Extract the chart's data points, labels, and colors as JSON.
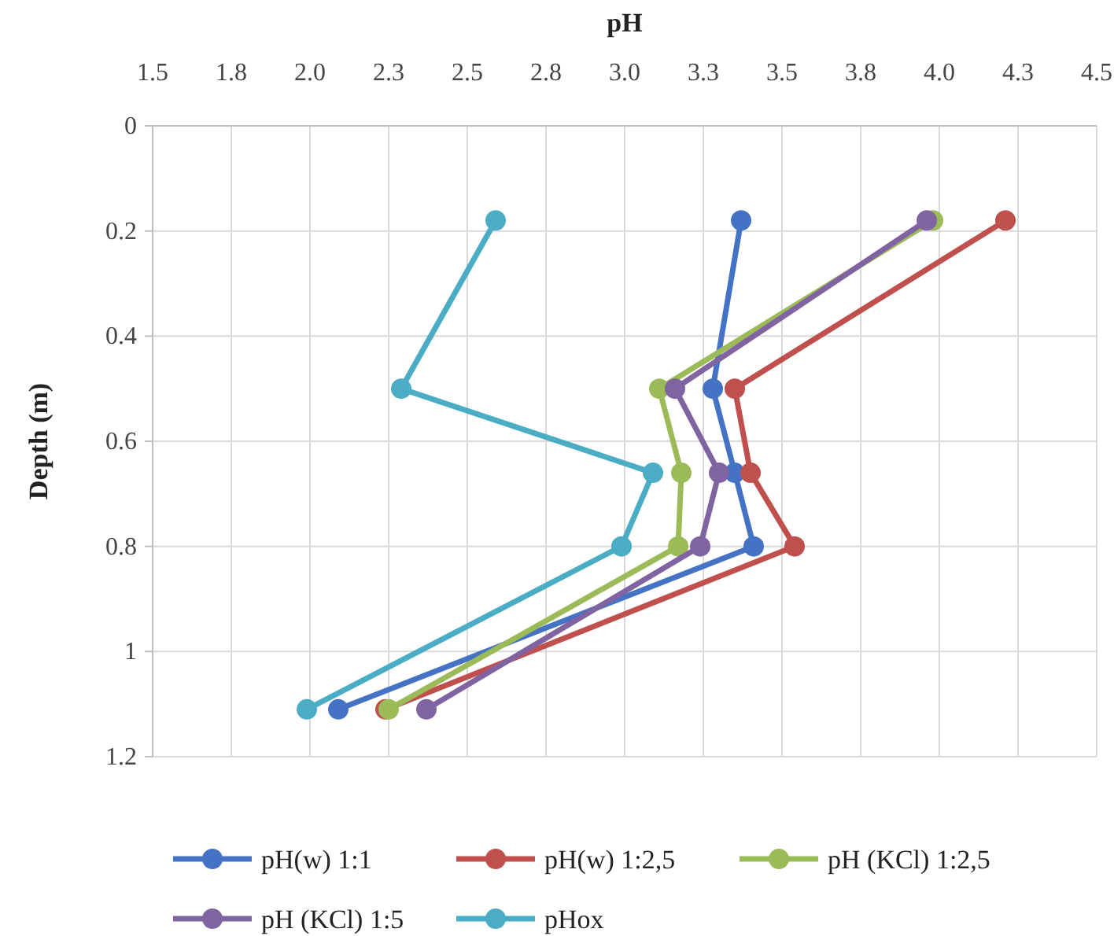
{
  "chart_data": {
    "type": "line",
    "xlabel": "pH",
    "ylabel": "Depth (m)",
    "xlim": [
      1.5,
      4.5
    ],
    "xticks": [
      1.5,
      {
        "value": 1.75,
        "label": "1.8"
      },
      {
        "value": 2,
        "label": "2.0"
      },
      {
        "value": 2.25,
        "label": "2.3"
      },
      {
        "value": 2.5,
        "label": "2.5"
      },
      {
        "value": 2.75,
        "label": "2.8"
      },
      {
        "value": 3,
        "label": "3.0"
      },
      {
        "value": 3.25,
        "label": "3.3"
      },
      3.5,
      {
        "value": 3.75,
        "label": "3.8"
      },
      {
        "value": 4,
        "label": "4.0"
      },
      {
        "value": 4.25,
        "label": "4.3"
      },
      4.5
    ],
    "ylim": [
      1.2,
      0
    ],
    "yticks": [
      0,
      0.2,
      0.4,
      0.6,
      0.8,
      1,
      1.2
    ],
    "grid": true,
    "legend": "bottom",
    "marker": "circle",
    "line_style": "solid",
    "series": [
      {
        "name": "pH(w) 1:1",
        "color": "#4472c4",
        "x": [
          3.37,
          3.28,
          3.35,
          3.41,
          2.09
        ],
        "values": [
          0.18,
          0.5,
          0.66,
          0.8,
          1.11
        ]
      },
      {
        "name": "pH(w) 1:2,5",
        "color": "#c0504d",
        "x": [
          4.21,
          3.35,
          3.4,
          3.54,
          2.24
        ],
        "values": [
          0.18,
          0.5,
          0.66,
          0.8,
          1.11
        ]
      },
      {
        "name": "pH (KCl) 1:2,5",
        "color": "#9bbb59",
        "x": [
          3.98,
          3.11,
          3.18,
          3.17,
          2.25
        ],
        "values": [
          0.18,
          0.5,
          0.66,
          0.8,
          1.11
        ]
      },
      {
        "name": "pH (KCl) 1:5",
        "color": "#8064a2",
        "x": [
          3.96,
          3.16,
          3.3,
          3.24,
          2.37
        ],
        "values": [
          0.18,
          0.5,
          0.66,
          0.8,
          1.11
        ]
      },
      {
        "name": "pHox",
        "color": "#4bacc6",
        "x": [
          2.59,
          2.29,
          3.09,
          2.99,
          1.99
        ],
        "values": [
          0.18,
          0.5,
          0.66,
          0.8,
          1.11
        ]
      }
    ]
  }
}
